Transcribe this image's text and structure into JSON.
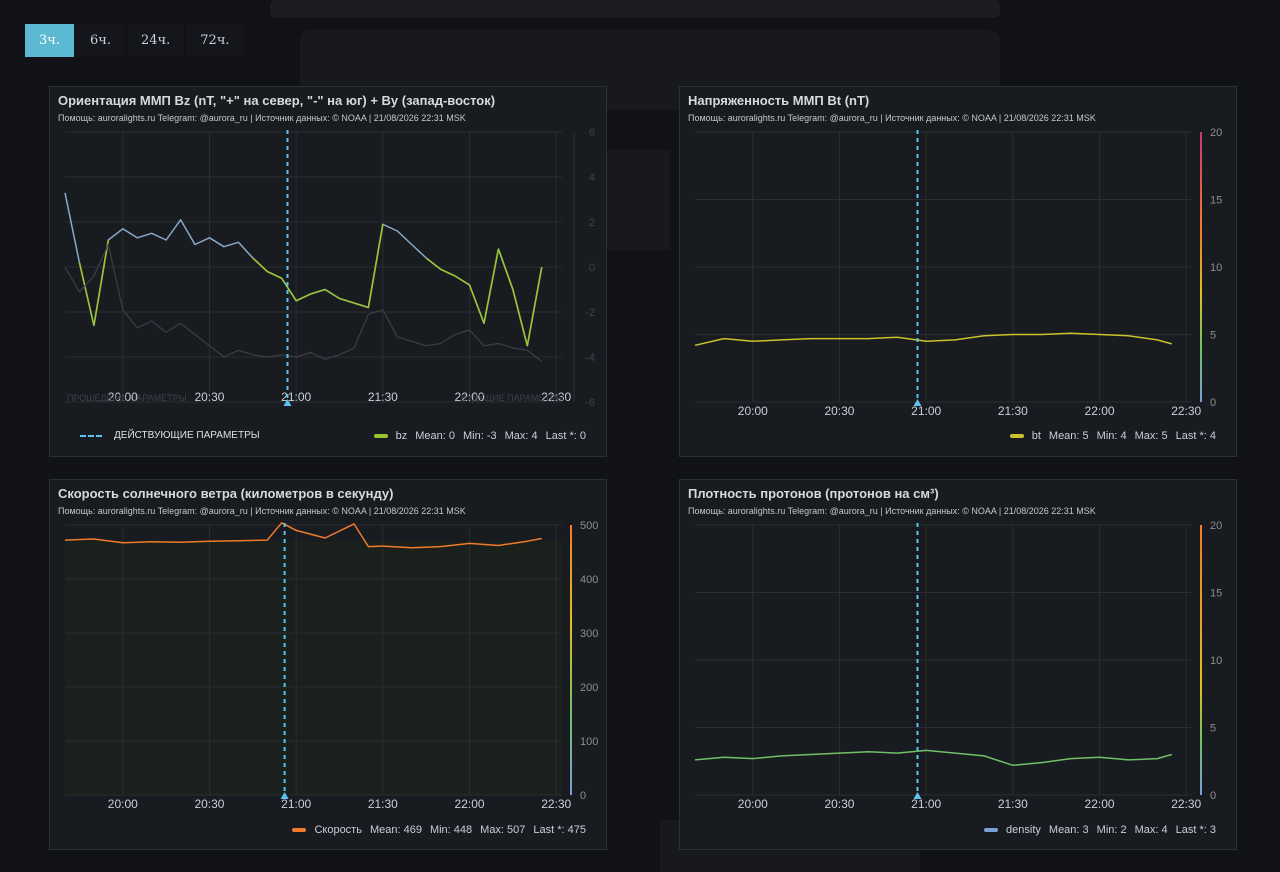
{
  "tabs": [
    "3ч.",
    "6ч.",
    "24ч.",
    "72ч."
  ],
  "active_tab": 0,
  "subtitle": "Помощь: auroralights.ru Telegram: @aurora_ru | Источник данных:  © NOAA | 21/08/2026 22:31 MSK",
  "x_ticks": [
    "20:00",
    "20:30",
    "21:00",
    "21:30",
    "22:00",
    "22:30"
  ],
  "panels": {
    "bz": {
      "title": "Ориентация ММП Bz (nT, \"+\" на север, \"-\" на юг) + By (запад-восток)",
      "y_ticks": [
        "6",
        "4",
        "2",
        "0",
        "-2",
        "-4",
        "-6"
      ],
      "past_label": "ПРОШЕДШИЕ ПАРАМЕТРЫ",
      "future_label": "БУДУЩИЕ ПАРАМЕТРЫ",
      "dashed_legend": "ДЕЙСТВУЮЩИЕ ПАРАМЕТРЫ",
      "legend": {
        "name": "bz",
        "color": "#9ac430",
        "mean": "Mean: 0",
        "min": "Min: -3",
        "max": "Max: 4",
        "last": "Last *: 0"
      }
    },
    "bt": {
      "title": "Напряженность ММП Bt (nT)",
      "y_ticks": [
        "20",
        "15",
        "10",
        "5",
        "0"
      ],
      "legend": {
        "name": "bt",
        "color": "#c9c22a",
        "mean": "Mean: 5",
        "min": "Min: 4",
        "max": "Max: 5",
        "last": "Last *: 4"
      }
    },
    "speed": {
      "title": "Скорость солнечного ветра (километров в секунду)",
      "y_ticks": [
        "500",
        "400",
        "300",
        "200",
        "100",
        "0"
      ],
      "legend": {
        "name": "Скорость",
        "color": "#ef7b2b",
        "mean": "Mean: 469",
        "min": "Min: 448",
        "max": "Max: 507",
        "last": "Last *: 475"
      }
    },
    "density": {
      "title": "Плотность протонов (протонов на см³)",
      "y_ticks": [
        "20",
        "15",
        "10",
        "5",
        "0"
      ],
      "legend": {
        "name": "density",
        "color": "#7a9ed6",
        "mean": "Mean: 3",
        "min": "Min: 2",
        "max": "Max: 4",
        "last": "Last *: 3"
      }
    }
  },
  "colors": {
    "accent": "#5bbad1",
    "dashed_line": "#5bc4ee",
    "background": "#111217",
    "panel": "#181b1f"
  },
  "chart_data": [
    {
      "type": "line",
      "title": "Ориентация ММП Bz (nT, \"+\" на север, \"-\" на юг) + By (запад-восток)",
      "x": [
        "19:40",
        "19:45",
        "19:50",
        "19:55",
        "20:00",
        "20:05",
        "20:10",
        "20:15",
        "20:20",
        "20:25",
        "20:30",
        "20:35",
        "20:40",
        "20:45",
        "20:50",
        "20:55",
        "21:00",
        "21:05",
        "21:10",
        "21:15",
        "21:20",
        "21:25",
        "21:30",
        "21:35",
        "21:40",
        "21:45",
        "21:50",
        "21:55",
        "22:00",
        "22:05",
        "22:10",
        "22:15",
        "22:20",
        "22:25"
      ],
      "series": [
        {
          "name": "bz",
          "values": [
            3.3,
            0.2,
            -2.6,
            1.2,
            1.7,
            1.3,
            1.5,
            1.2,
            2.1,
            1.0,
            1.3,
            0.9,
            1.1,
            0.4,
            -0.2,
            -0.5,
            -1.5,
            -1.2,
            -1.0,
            -1.4,
            -1.6,
            -1.8,
            1.9,
            1.6,
            1.0,
            0.4,
            -0.1,
            -0.4,
            -0.8,
            -2.5,
            0.8,
            -1.0,
            -3.5,
            0.0
          ]
        },
        {
          "values": [
            0.0,
            -1.1,
            -0.4,
            1.0,
            -1.9,
            -2.7,
            -2.4,
            -2.9,
            -2.5,
            -3.0,
            -3.5,
            -4.0,
            -3.7,
            -3.9,
            -4.0,
            -3.9,
            -4.0,
            -3.8,
            -4.1,
            -3.9,
            -3.6,
            -2.1,
            -1.9,
            -3.1,
            -3.3,
            -3.5,
            -3.4,
            -3.0,
            -2.8,
            -3.5,
            -3.4,
            -3.6,
            -3.7,
            -4.2
          ]
        }
      ],
      "ylim": [
        -6,
        6
      ],
      "current_time": "20:57",
      "legend": "bottom"
    },
    {
      "type": "line",
      "title": "Напряженность ММП Bt (nT)",
      "x": [
        "19:40",
        "19:50",
        "20:00",
        "20:10",
        "20:20",
        "20:30",
        "20:40",
        "20:50",
        "21:00",
        "21:10",
        "21:20",
        "21:30",
        "21:40",
        "21:50",
        "22:00",
        "22:10",
        "22:20",
        "22:25"
      ],
      "series": [
        {
          "name": "bt",
          "values": [
            4.2,
            4.7,
            4.5,
            4.6,
            4.7,
            4.7,
            4.7,
            4.8,
            4.5,
            4.6,
            4.9,
            5.0,
            5.0,
            5.1,
            5.0,
            4.9,
            4.6,
            4.3
          ]
        }
      ],
      "ylim": [
        0,
        20
      ],
      "current_time": "20:57",
      "legend": "bottom"
    },
    {
      "type": "line",
      "title": "Скорость солнечного ветра (километров в секунду)",
      "x": [
        "19:40",
        "19:50",
        "20:00",
        "20:10",
        "20:20",
        "20:30",
        "20:40",
        "20:50",
        "20:55",
        "21:00",
        "21:10",
        "21:20",
        "21:25",
        "21:30",
        "21:40",
        "21:50",
        "22:00",
        "22:10",
        "22:20",
        "22:25"
      ],
      "series": [
        {
          "name": "Скорость",
          "values": [
            472,
            474,
            467,
            469,
            468,
            470,
            471,
            472,
            504,
            490,
            476,
            502,
            460,
            461,
            458,
            460,
            466,
            462,
            470,
            475
          ]
        }
      ],
      "ylim": [
        0,
        500
      ],
      "current_time": "20:56",
      "legend": "bottom"
    },
    {
      "type": "line",
      "title": "Плотность протонов (протонов на см³)",
      "x": [
        "19:40",
        "19:50",
        "20:00",
        "20:10",
        "20:20",
        "20:30",
        "20:40",
        "20:50",
        "21:00",
        "21:10",
        "21:20",
        "21:30",
        "21:40",
        "21:50",
        "22:00",
        "22:10",
        "22:20",
        "22:25"
      ],
      "series": [
        {
          "name": "density",
          "values": [
            2.6,
            2.8,
            2.7,
            2.9,
            3.0,
            3.1,
            3.2,
            3.1,
            3.3,
            3.1,
            2.9,
            2.2,
            2.4,
            2.7,
            2.8,
            2.6,
            2.7,
            3.0
          ]
        }
      ],
      "ylim": [
        0,
        20
      ],
      "current_time": "20:57",
      "legend": "bottom"
    }
  ]
}
